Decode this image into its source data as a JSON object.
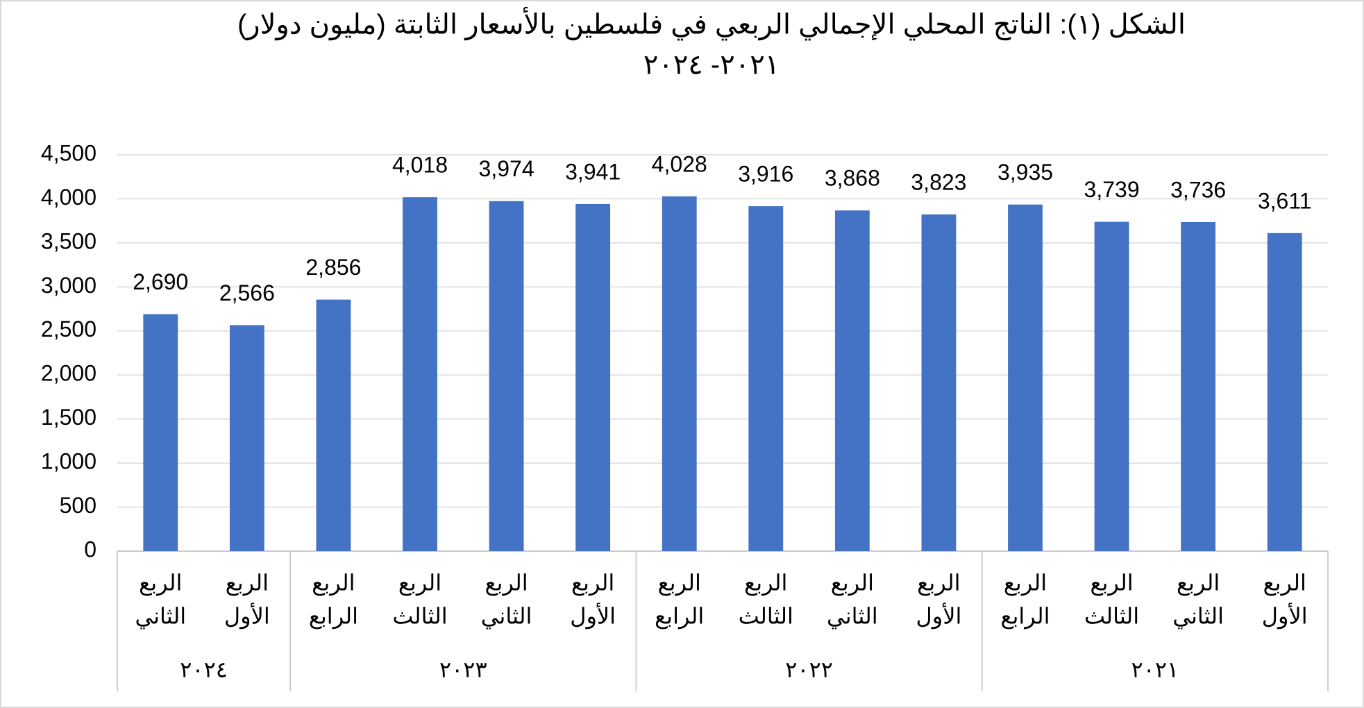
{
  "chart_data": {
    "type": "bar",
    "title": [
      "الشكل (١): الناتج المحلي الإجمالي الربعي في فلسطين بالأسعار الثابتة (مليون دولار)",
      "٢٠٢١- ٢٠٢٤"
    ],
    "color": "#4472c4",
    "ylim": [
      0,
      4500
    ],
    "yticks": [
      0,
      500,
      {
        "value": 1000,
        "label": "1,000"
      },
      {
        "value": 1500,
        "label": "1,500"
      },
      {
        "value": 2000,
        "label": "2,000"
      },
      {
        "value": 2500,
        "label": "2,500"
      },
      {
        "value": 3000,
        "label": "3,000"
      },
      {
        "value": 3500,
        "label": "3,500"
      },
      {
        "value": 4000,
        "label": "4,000"
      },
      {
        "value": 4500,
        "label": "4,500"
      }
    ],
    "grid": true,
    "groups": [
      {
        "label": "٢٠٢٤",
        "categories": [
          [
            "الربع",
            "الثاني"
          ],
          [
            "الربع",
            "الأول"
          ]
        ],
        "values": [
          2690,
          2566
        ],
        "value_labels": [
          "2,690",
          "2,566"
        ]
      },
      {
        "label": "٢٠٢٣",
        "categories": [
          [
            "الربع",
            "الرابع"
          ],
          [
            "الربع",
            "الثالث"
          ],
          [
            "الربع",
            "الثاني"
          ],
          [
            "الربع",
            "الأول"
          ]
        ],
        "values": [
          2856,
          4018,
          3974,
          3941
        ],
        "value_labels": [
          "2,856",
          "4,018",
          "3,974",
          "3,941"
        ]
      },
      {
        "label": "٢٠٢٢",
        "categories": [
          [
            "الربع",
            "الرابع"
          ],
          [
            "الربع",
            "الثالث"
          ],
          [
            "الربع",
            "الثاني"
          ],
          [
            "الربع",
            "الأول"
          ]
        ],
        "values": [
          4028,
          3916,
          3868,
          3823
        ],
        "value_labels": [
          "4,028",
          "3,916",
          "3,868",
          "3,823"
        ]
      },
      {
        "label": "٢٠٢١",
        "categories": [
          [
            "الربع",
            "الرابع"
          ],
          [
            "الربع",
            "الثالث"
          ],
          [
            "الربع",
            "الثاني"
          ],
          [
            "الربع",
            "الأول"
          ]
        ],
        "values": [
          3935,
          3739,
          3736,
          3611
        ],
        "value_labels": [
          "3,935",
          "3,739",
          "3,736",
          "3,611"
        ]
      }
    ]
  }
}
